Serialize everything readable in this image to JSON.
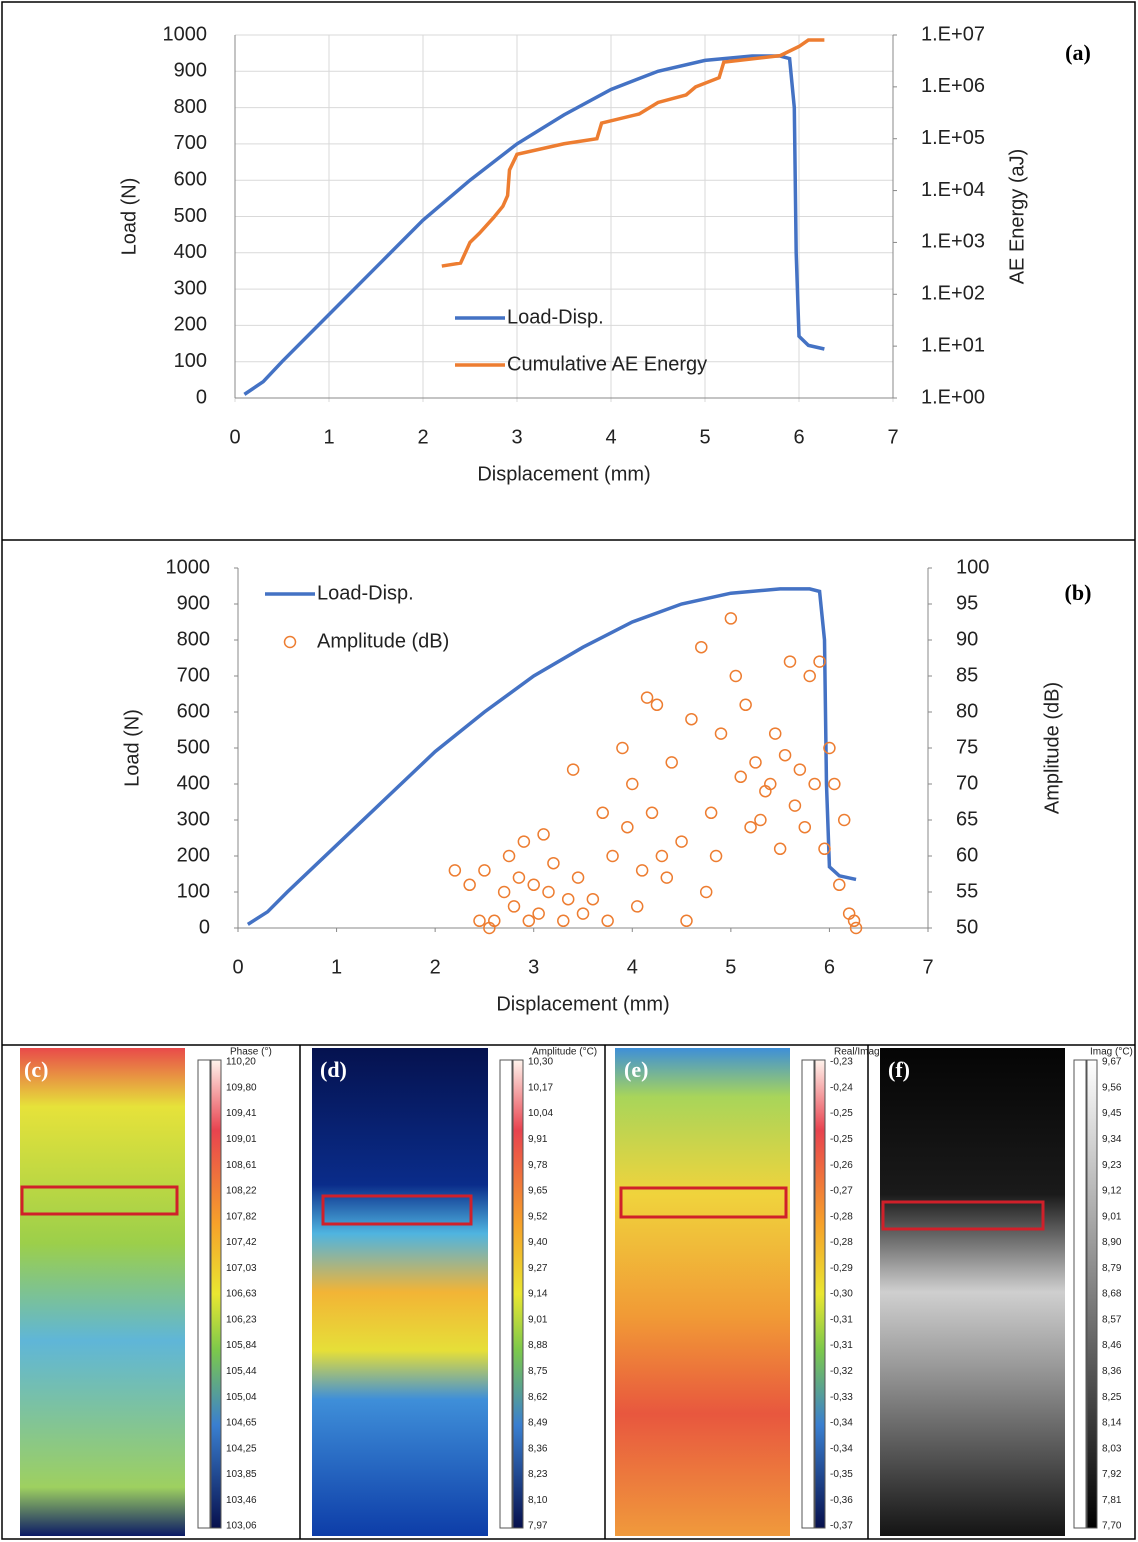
{
  "chart_data": [
    {
      "type": "line",
      "panel_label": "(a)",
      "x_label": "Displacement (mm)",
      "y_label": "Load (N)",
      "y2_label": "AE Energy (aJ)",
      "xlim": [
        0,
        7
      ],
      "xticks": [
        0,
        1,
        2,
        3,
        4,
        5,
        6,
        7
      ],
      "ylim": [
        0,
        1000
      ],
      "yticks": [
        0,
        100,
        200,
        300,
        400,
        500,
        600,
        700,
        800,
        900,
        1000
      ],
      "y2lim": [
        1,
        10000000
      ],
      "y2scale": "log",
      "y2ticks": [
        {
          "value": 1,
          "label": "1.E+00"
        },
        {
          "value": 10,
          "label": "1.E+01"
        },
        {
          "value": 100,
          "label": "1.E+02"
        },
        {
          "value": 1000,
          "label": "1.E+03"
        },
        {
          "value": 10000,
          "label": "1.E+04"
        },
        {
          "value": 100000,
          "label": "1.E+05"
        },
        {
          "value": 1000000,
          "label": "1.E+06"
        },
        {
          "value": 10000000,
          "label": "1.E+07"
        }
      ],
      "grid": true,
      "legend": "center",
      "series": [
        {
          "name": "Load-Disp.",
          "type": "line",
          "color": "#4472c4",
          "x": [
            0.1,
            0.3,
            0.5,
            1,
            1.5,
            2,
            2.5,
            3,
            3.5,
            4,
            4.5,
            5,
            5.5,
            5.8,
            5.9,
            5.95,
            5.97,
            6.0,
            6.1,
            6.27
          ],
          "values": [
            10,
            45,
            100,
            230,
            360,
            490,
            600,
            700,
            780,
            850,
            900,
            930,
            942,
            942,
            935,
            800,
            400,
            170,
            145,
            135
          ]
        },
        {
          "name": "Cumulative AE Energy",
          "type": "line",
          "axis": "y2",
          "color": "#ed7d31",
          "x": [
            2.2,
            2.4,
            2.5,
            2.6,
            2.75,
            2.85,
            2.9,
            2.92,
            3.0,
            3.5,
            3.85,
            3.9,
            4.3,
            4.5,
            4.8,
            4.9,
            5.15,
            5.2,
            5.8,
            6.0,
            6.1,
            6.27
          ],
          "values": [
            350,
            400,
            1000,
            1500,
            3000,
            5000,
            8000,
            25000,
            50000,
            80000,
            100000,
            200000,
            300000,
            500000,
            700000,
            1000000,
            1500000,
            3000000,
            4000000,
            6000000,
            8000000,
            8000000
          ]
        }
      ]
    },
    {
      "type": "line",
      "panel_label": "(b)",
      "x_label": "Displacement (mm)",
      "y_label": "Load (N)",
      "y2_label": "Amplitude (dB)",
      "xlim": [
        0,
        7
      ],
      "xticks": [
        0,
        1,
        2,
        3,
        4,
        5,
        6,
        7
      ],
      "ylim": [
        0,
        1000
      ],
      "yticks": [
        0,
        100,
        200,
        300,
        400,
        500,
        600,
        700,
        800,
        900,
        1000
      ],
      "y2lim": [
        50,
        100
      ],
      "y2ticks": [
        50,
        55,
        60,
        65,
        70,
        75,
        80,
        85,
        90,
        95,
        100
      ],
      "grid": false,
      "legend": "upper left",
      "series": [
        {
          "name": "Load-Disp.",
          "type": "line",
          "color": "#4472c4",
          "x": [
            0.1,
            0.3,
            0.5,
            1,
            1.5,
            2,
            2.5,
            3,
            3.5,
            4,
            4.5,
            5,
            5.5,
            5.8,
            5.9,
            5.95,
            5.97,
            6.0,
            6.1,
            6.27
          ],
          "values": [
            10,
            45,
            100,
            230,
            360,
            490,
            600,
            700,
            780,
            850,
            900,
            930,
            942,
            942,
            935,
            800,
            400,
            170,
            145,
            135
          ]
        },
        {
          "name": "Amplitude (dB)",
          "type": "scatter",
          "axis": "y2",
          "color": "#ed7d31",
          "x": [
            2.2,
            2.35,
            2.45,
            2.5,
            2.55,
            2.6,
            2.7,
            2.75,
            2.8,
            2.85,
            2.9,
            2.95,
            3.0,
            3.05,
            3.1,
            3.15,
            3.2,
            3.3,
            3.35,
            3.4,
            3.45,
            3.5,
            3.6,
            3.7,
            3.75,
            3.8,
            3.9,
            3.95,
            4.0,
            4.05,
            4.1,
            4.15,
            4.2,
            4.25,
            4.3,
            4.35,
            4.4,
            4.5,
            4.55,
            4.6,
            4.7,
            4.75,
            4.8,
            4.85,
            4.9,
            5.0,
            5.05,
            5.1,
            5.15,
            5.2,
            5.25,
            5.3,
            5.35,
            5.4,
            5.45,
            5.5,
            5.55,
            5.6,
            5.65,
            5.7,
            5.75,
            5.8,
            5.85,
            5.9,
            5.95,
            6.0,
            6.05,
            6.1,
            6.15,
            6.2,
            6.25,
            6.27
          ],
          "values": [
            58,
            56,
            51,
            58,
            50,
            51,
            55,
            60,
            53,
            57,
            62,
            51,
            56,
            52,
            63,
            55,
            59,
            51,
            54,
            72,
            57,
            52,
            54,
            66,
            51,
            60,
            75,
            64,
            70,
            53,
            58,
            82,
            66,
            81,
            60,
            57,
            73,
            62,
            51,
            79,
            89,
            55,
            66,
            60,
            77,
            93,
            85,
            71,
            81,
            64,
            73,
            65,
            69,
            70,
            77,
            61,
            74,
            87,
            67,
            72,
            64,
            85,
            70,
            87,
            61,
            75,
            70,
            56,
            65,
            52,
            51,
            50
          ]
        }
      ]
    }
  ],
  "thermal_panels": [
    {
      "label": "(c)",
      "title": "Phase (°)",
      "scale": [
        "110,20",
        "109,80",
        "109,41",
        "109,01",
        "108,61",
        "108,22",
        "107,82",
        "107,42",
        "107,03",
        "106,63",
        "106,23",
        "105,84",
        "105,44",
        "105,04",
        "104,65",
        "104,25",
        "103,85",
        "103,46",
        "103,06"
      ]
    },
    {
      "label": "(d)",
      "title": "Amplitude (°C)",
      "scale": [
        "10,30",
        "10,17",
        "10,04",
        "9,91",
        "9,78",
        "9,65",
        "9,52",
        "9,40",
        "9,27",
        "9,14",
        "9,01",
        "8,88",
        "8,75",
        "8,62",
        "8,49",
        "8,36",
        "8,23",
        "8,10",
        "7,97"
      ]
    },
    {
      "label": "(e)",
      "title": "Real/Imag",
      "scale": [
        "-0,23",
        "-0,24",
        "-0,25",
        "-0,25",
        "-0,26",
        "-0,27",
        "-0,28",
        "-0,28",
        "-0,29",
        "-0,30",
        "-0,31",
        "-0,31",
        "-0,32",
        "-0,33",
        "-0,34",
        "-0,34",
        "-0,35",
        "-0,36",
        "-0,37"
      ]
    },
    {
      "label": "(f)",
      "title": "Imag (°C)",
      "scale": [
        "9,67",
        "9,56",
        "9,45",
        "9,34",
        "9,23",
        "9,12",
        "9,01",
        "8,90",
        "8,79",
        "8,68",
        "8,57",
        "8,46",
        "8,36",
        "8,25",
        "8,14",
        "8,03",
        "7,92",
        "7,81",
        "7,70"
      ]
    }
  ]
}
